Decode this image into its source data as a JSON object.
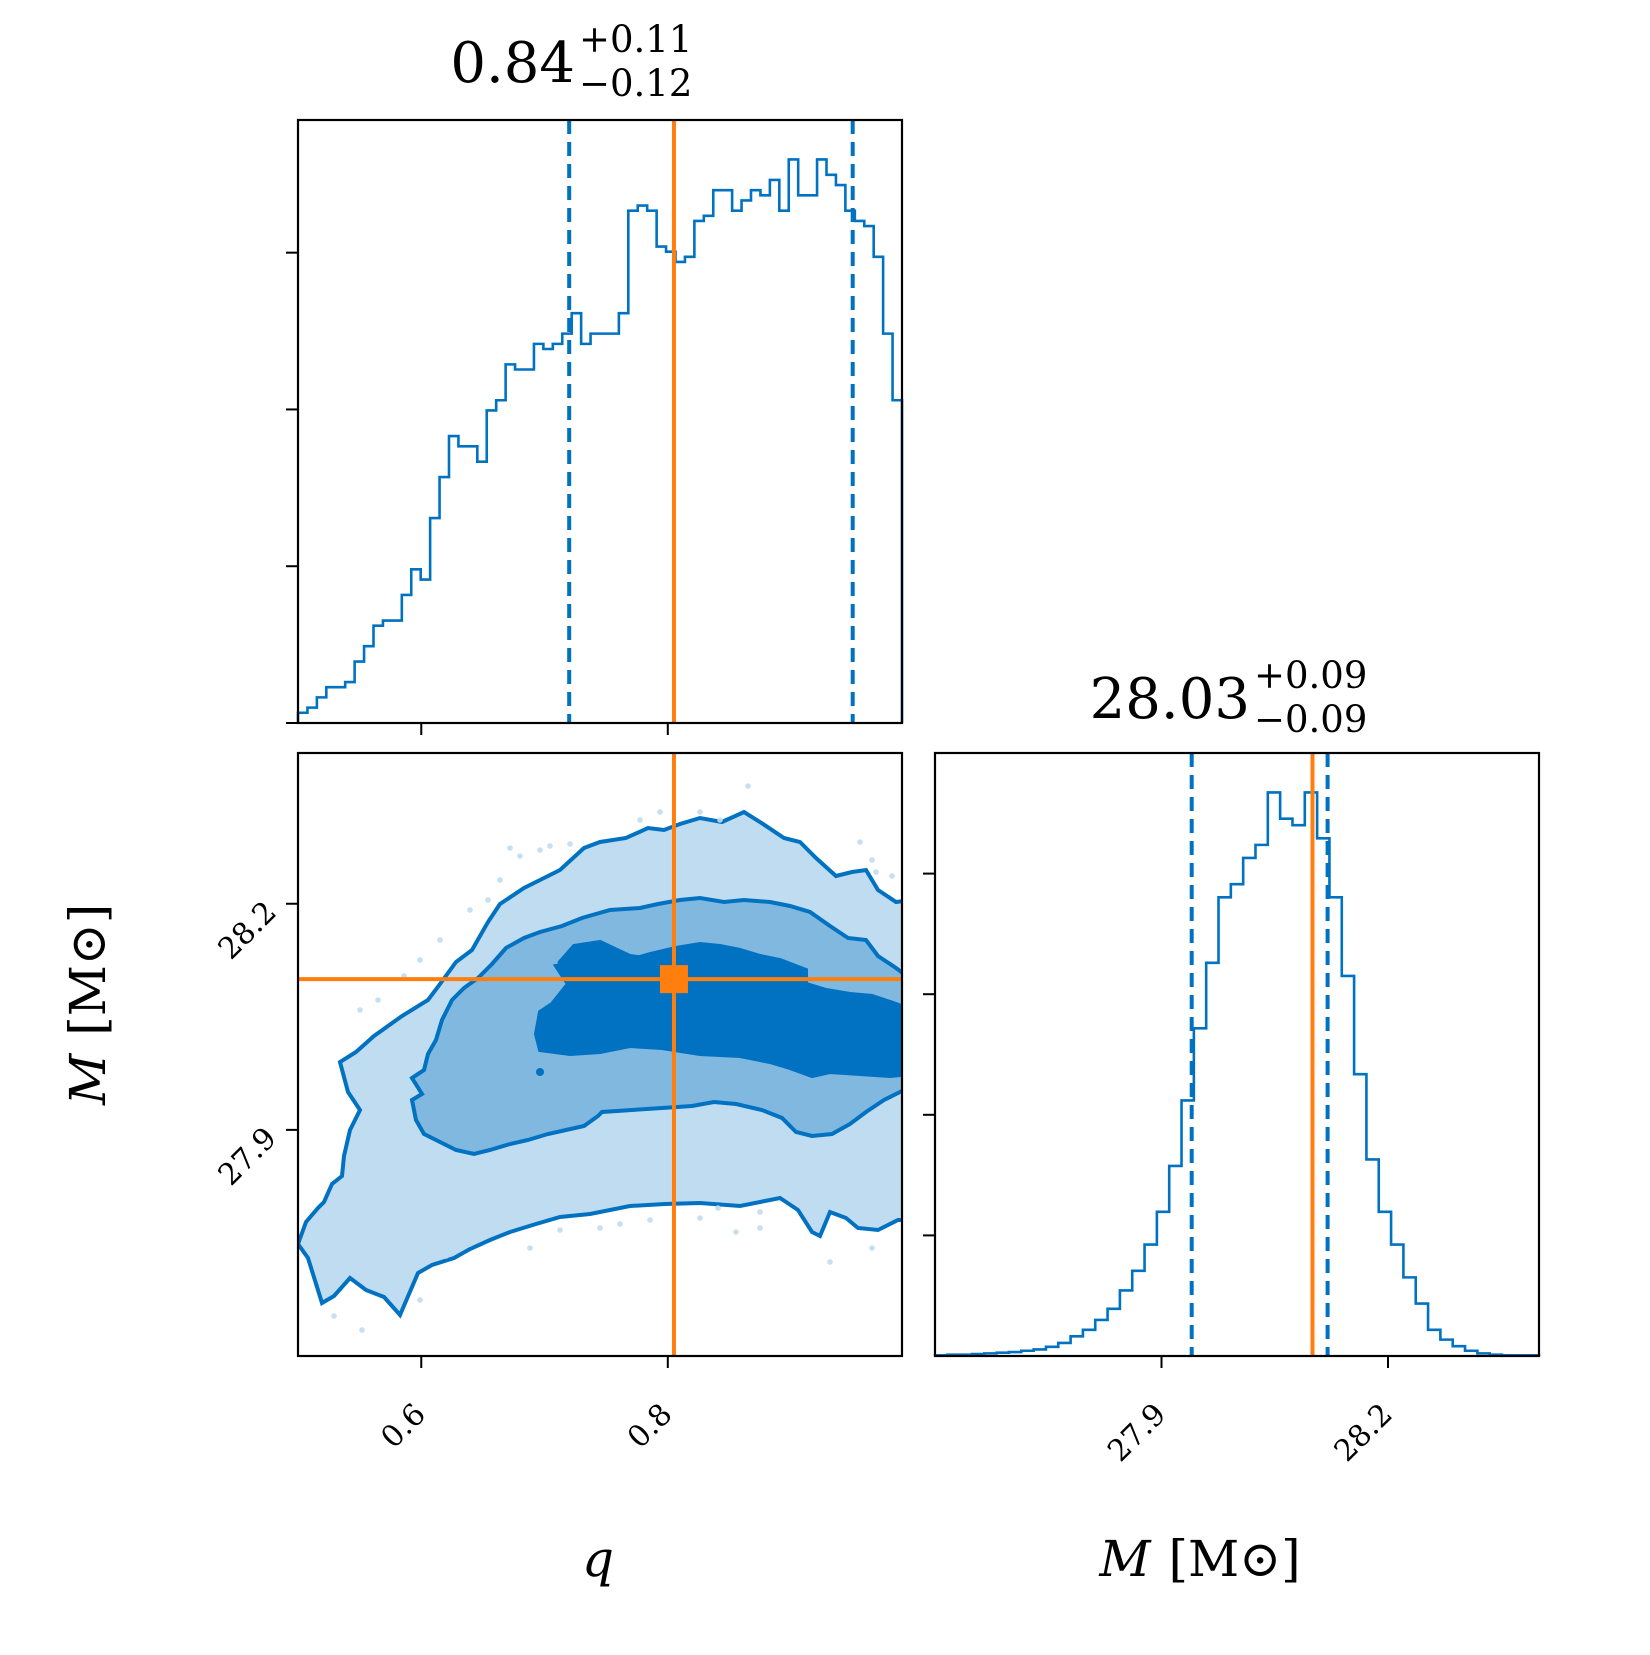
{
  "colors": {
    "main": "#0072c1",
    "truth": "#ff7f0e",
    "level1": "#0072c1",
    "level2": "#80b8e0",
    "level3": "#c0dcf0",
    "axes": "#000000"
  },
  "chart_data": [
    {
      "type": "histogram",
      "panel": "q marginal",
      "title_value": "0.84",
      "title_plus": "+0.11",
      "title_minus": "−0.12",
      "xlim": [
        0.5,
        0.99
      ],
      "yticks_labeled": false,
      "x_ticks": [
        0.6,
        0.8
      ],
      "bin_edges_range": [
        0.5,
        0.99
      ],
      "counts": [
        2,
        3,
        5,
        7,
        7,
        8,
        12,
        15,
        19,
        20,
        20,
        25,
        30,
        28,
        40,
        48,
        56,
        54,
        54,
        51,
        61,
        63,
        70,
        69,
        69,
        74,
        73,
        74,
        76,
        80,
        74,
        76,
        76,
        76,
        80,
        100,
        101,
        100,
        93,
        92,
        90,
        91,
        98,
        99,
        104,
        104,
        100,
        102,
        104,
        103,
        106,
        100,
        110,
        103,
        103,
        110,
        107,
        105,
        100,
        98,
        97,
        91,
        76,
        63
      ],
      "credible_interval": [
        0.72,
        0.95
      ],
      "truth": 0.805
    },
    {
      "type": "contour",
      "panel": "M vs q 2D",
      "xlabel": "q",
      "ylabel": "M",
      "ylabel_unit": "[M⊙]",
      "xlim": [
        0.5,
        0.99
      ],
      "ylim": [
        27.6,
        28.4
      ],
      "x_ticks": [
        "0.6",
        "0.8"
      ],
      "y_ticks": [
        "27.9",
        "28.2"
      ],
      "levels": [
        "39%",
        "86%",
        "99%"
      ],
      "truth": {
        "q": 0.805,
        "M": 28.1
      }
    },
    {
      "type": "histogram",
      "panel": "M marginal",
      "title_value": "28.03",
      "title_plus": "+0.09",
      "title_minus": "−0.09",
      "xlabel": "M",
      "xlabel_unit": "[M⊙]",
      "xlim": [
        27.6,
        28.4
      ],
      "x_ticks": [
        "27.9",
        "28.2"
      ],
      "yticks_labeled": false,
      "bin_edges_range": [
        27.6,
        28.4
      ],
      "counts": [
        1,
        2,
        2,
        3,
        4,
        5,
        6,
        8,
        10,
        14,
        20,
        30,
        40,
        55,
        72,
        100,
        130,
        170,
        220,
        290,
        390,
        500,
        600,
        700,
        720,
        760,
        780,
        860,
        820,
        810,
        860,
        790,
        700,
        580,
        430,
        300,
        220,
        170,
        120,
        80,
        40,
        25,
        15,
        8,
        4,
        2,
        1,
        1,
        1
      ],
      "credible_interval": [
        27.94,
        28.12
      ],
      "truth": 28.1
    }
  ]
}
